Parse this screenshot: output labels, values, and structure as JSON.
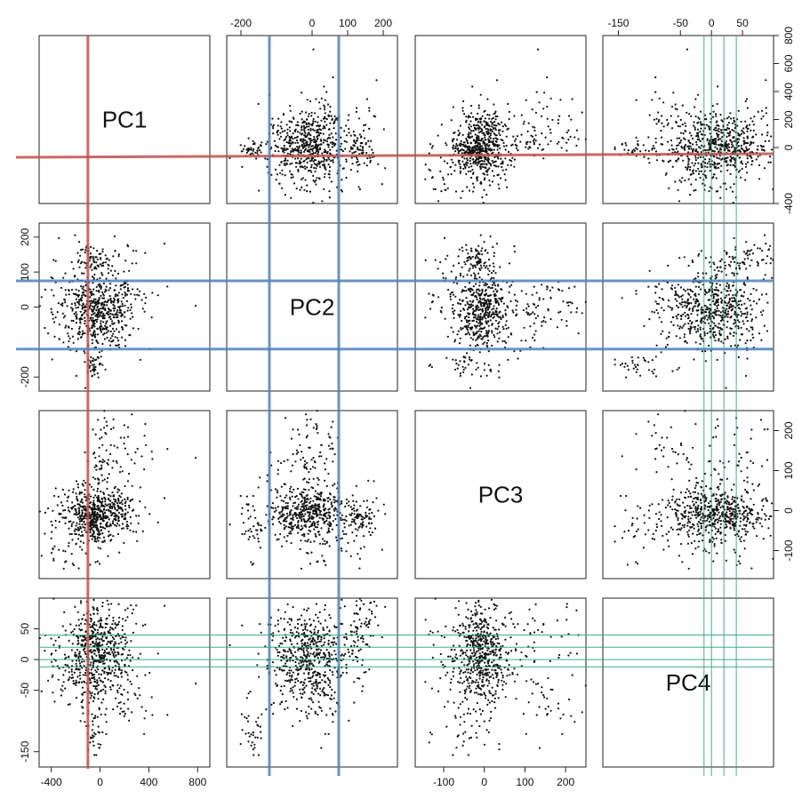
{
  "chart_data": {
    "type": "scatter",
    "variables": [
      "PC1",
      "PC2",
      "PC3",
      "PC4"
    ],
    "axis_ranges": {
      "PC1": [
        -500,
        900
      ],
      "PC2": [
        -240,
        240
      ],
      "PC3": [
        -170,
        250
      ],
      "PC4": [
        -175,
        100
      ]
    },
    "ticks": {
      "PC1": [
        -400,
        0,
        400,
        800
      ],
      "PC2": [
        -200,
        0,
        100,
        200
      ],
      "PC3": [
        -100,
        0,
        100,
        200
      ],
      "PC4": [
        -150,
        -50,
        0,
        50
      ]
    },
    "tick_labels": {
      "bottom_PC1": [
        "-400",
        "0",
        "400",
        "800"
      ],
      "top_PC2": [
        "-200",
        "0",
        "100",
        "200"
      ],
      "bottom_PC3": [
        "-100",
        "0",
        "100",
        "200"
      ],
      "top_PC4": [
        "-150",
        "-50",
        "0",
        "50"
      ],
      "left_PC2": [
        "-200",
        "0",
        "100",
        "200"
      ],
      "left_PC4": [
        "-150",
        "-50",
        "0",
        "50"
      ],
      "right_PC1": [
        "-400",
        "0",
        "200",
        "400",
        "600",
        "800"
      ],
      "right_PC3": [
        "-100",
        "0",
        "100",
        "200"
      ]
    },
    "cutoff_lines": {
      "PC1": {
        "values": [
          -100
        ],
        "color": "#c0504d"
      },
      "PC2": {
        "values": [
          -120,
          75
        ],
        "color": "#4f81bd"
      },
      "PC4": {
        "values": [
          -12,
          0,
          20,
          40
        ],
        "color": "#2aa876"
      }
    },
    "point_color": "#111111",
    "grid": false,
    "legend": "none"
  }
}
